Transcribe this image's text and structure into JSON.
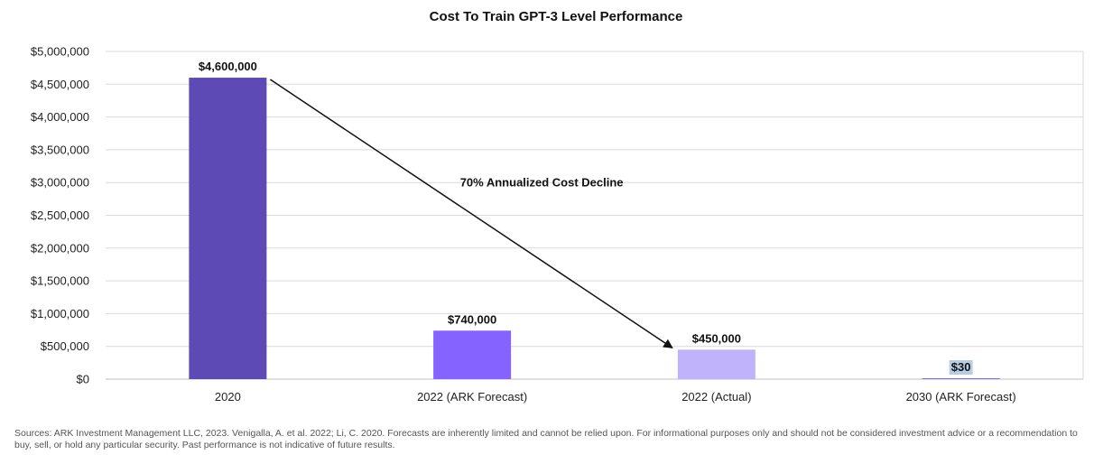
{
  "chart_data": {
    "type": "bar",
    "title": "Cost To Train GPT-3 Level Performance",
    "xlabel": "",
    "ylabel": "",
    "categories": [
      "2020",
      "2022 (ARK Forecast)",
      "2022 (Actual)",
      "2030 (ARK Forecast)"
    ],
    "values": [
      4600000,
      740000,
      450000,
      30
    ],
    "data_labels": [
      "$4,600,000",
      "$740,000",
      "$450,000",
      "$30"
    ],
    "bar_colors": [
      "#5e4ab4",
      "#8563ff",
      "#c0b2fb",
      "#8563ff"
    ],
    "ylim": [
      0,
      5000000
    ],
    "yticks": [
      0,
      500000,
      1000000,
      1500000,
      2000000,
      2500000,
      3000000,
      3500000,
      4000000,
      4500000,
      5000000
    ],
    "ytick_labels": [
      "$0",
      "$500,000",
      "$1,000,000",
      "$1,500,000",
      "$2,000,000",
      "$2,500,000",
      "$3,000,000",
      "$3,500,000",
      "$4,000,000",
      "$4,500,000",
      "$5,000,000"
    ],
    "grid": true,
    "legend": "none",
    "annotation": {
      "text": "70% Annualized Cost Decline",
      "arrow_from": {
        "category": "2020",
        "value": 4600000
      },
      "arrow_to": {
        "category": "2022 (Actual)",
        "value": 450000
      }
    },
    "highlighted_label": "$30",
    "highlight_color": "#b8cce4",
    "grid_color": "#d9d9d9",
    "axis_color": "#bfbfbf"
  },
  "footer": {
    "sources": "Sources: ARK Investment Management LLC, 2023. Venigalla, A. et al. 2022; Li, C. 2020. Forecasts are inherently limited and cannot be relied upon. For informational purposes only and should not be considered investment advice or a recommendation to buy, sell, or hold any particular security. Past performance is not indicative of future results."
  }
}
